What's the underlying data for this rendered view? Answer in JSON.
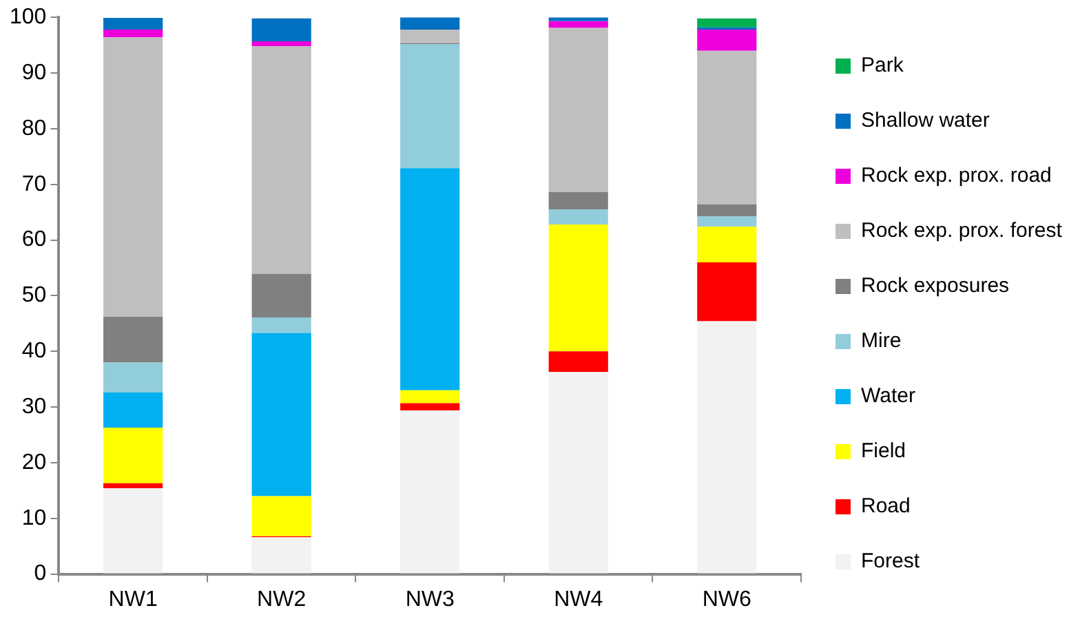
{
  "chart_data": {
    "type": "bar",
    "stacked": true,
    "categories": [
      "NW1",
      "NW2",
      "NW3",
      "NW4",
      "NW6"
    ],
    "series": [
      {
        "name": "Forest",
        "color": "#f2f2f2",
        "values": [
          15.4,
          6.6,
          29.4,
          36.3,
          45.4
        ]
      },
      {
        "name": "Road",
        "color": "#ff0000",
        "values": [
          0.9,
          0.2,
          1.3,
          3.7,
          10.6
        ]
      },
      {
        "name": "Field",
        "color": "#ffff00",
        "values": [
          10.0,
          7.2,
          2.3,
          22.8,
          6.4
        ]
      },
      {
        "name": "Water",
        "color": "#00b0f0",
        "values": [
          6.3,
          29.3,
          39.9,
          0,
          0
        ]
      },
      {
        "name": "Mire",
        "color": "#92cddc",
        "values": [
          5.4,
          2.8,
          22.3,
          2.7,
          1.8
        ]
      },
      {
        "name": "Rock exposures",
        "color": "#808080",
        "values": [
          8.2,
          7.8,
          0.2,
          3.1,
          2.2
        ]
      },
      {
        "name": "Rock exp. prox. forest",
        "color": "#bfbfbf",
        "values": [
          50.2,
          40.9,
          2.4,
          29.5,
          27.6
        ]
      },
      {
        "name": "Rock exp. prox. road",
        "color": "#ee00dd",
        "values": [
          1.4,
          0.9,
          0,
          1.2,
          3.8
        ]
      },
      {
        "name": "Shallow water",
        "color": "#0070c0",
        "values": [
          2.1,
          4.1,
          2.2,
          0.7,
          0.4
        ]
      },
      {
        "name": "Park",
        "color": "#00b050",
        "values": [
          0,
          0,
          0,
          0,
          1.6
        ]
      }
    ],
    "ylim": [
      0,
      100
    ],
    "yticks": [
      0,
      10,
      20,
      30,
      40,
      50,
      60,
      70,
      80,
      90,
      100
    ],
    "grid": false,
    "legend": "right"
  }
}
